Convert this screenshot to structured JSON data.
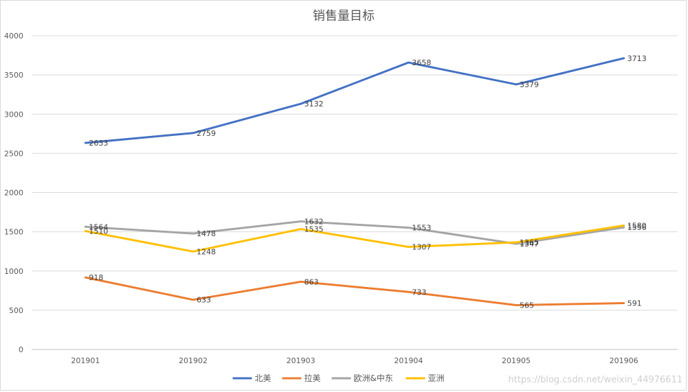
{
  "chart_data": {
    "type": "line",
    "title": "销售量目标",
    "categories": [
      "201901",
      "201902",
      "201903",
      "201904",
      "201905",
      "201906"
    ],
    "ylim": [
      0,
      4000
    ],
    "yticks": [
      0,
      500,
      1000,
      1500,
      2000,
      2500,
      3000,
      3500,
      4000
    ],
    "grid": true,
    "legend": "bottom",
    "series": [
      {
        "name": "北美",
        "color": "#4472c4",
        "values": [
          2633,
          2759,
          3132,
          3658,
          3379,
          3713
        ]
      },
      {
        "name": "拉美",
        "color": "#ed7d31",
        "values": [
          918,
          633,
          863,
          733,
          565,
          591
        ]
      },
      {
        "name": "欧洲&中东",
        "color": "#a5a5a5",
        "values": [
          1564,
          1478,
          1632,
          1553,
          1347,
          1556
        ]
      },
      {
        "name": "亚洲",
        "color": "#ffc000",
        "values": [
          1510,
          1248,
          1535,
          1307,
          1365,
          1580
        ]
      }
    ]
  },
  "watermark": "https://blog.csdn.net/weixin_44976611"
}
